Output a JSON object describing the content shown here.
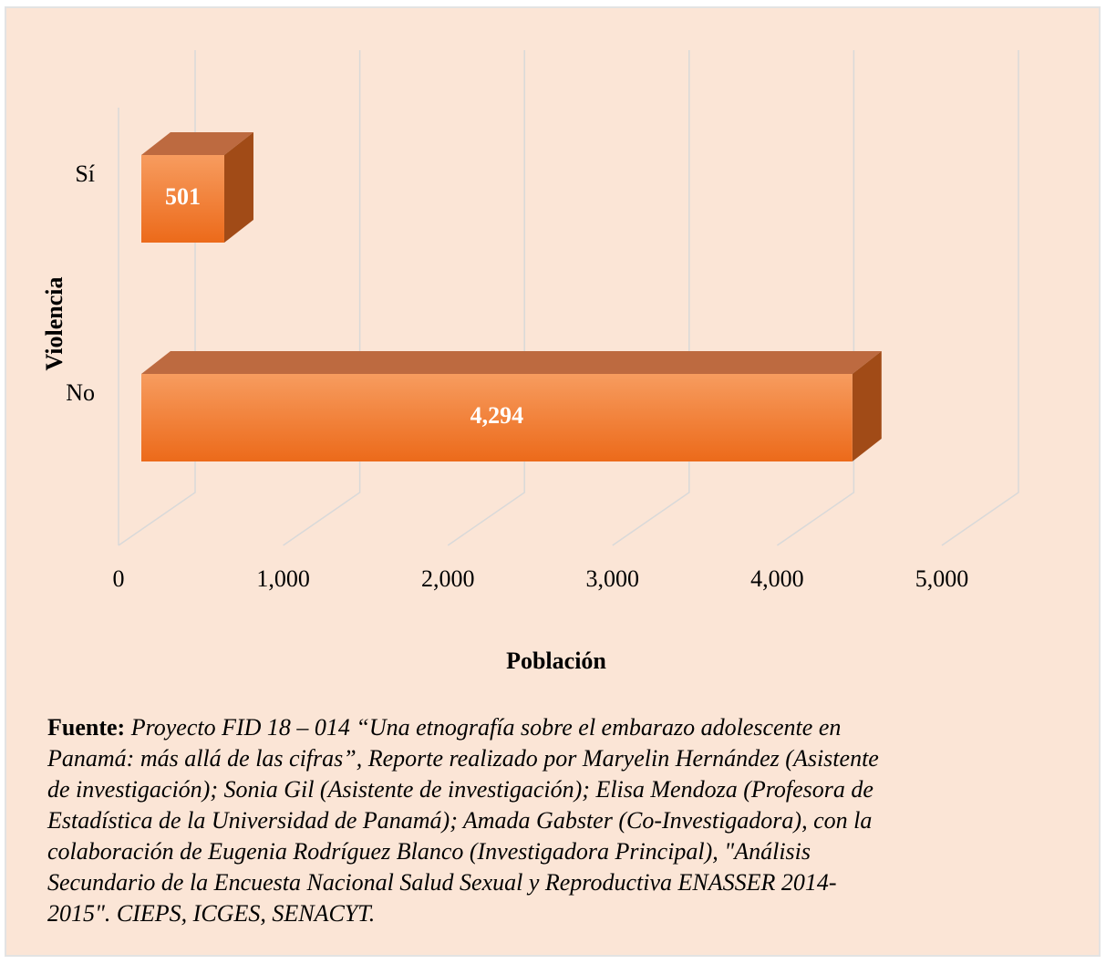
{
  "chart_data": {
    "type": "bar",
    "orientation": "horizontal",
    "categories": [
      "Sí",
      "No"
    ],
    "values": [
      501,
      4294
    ],
    "value_labels": [
      "501",
      "4,294"
    ],
    "color": "#ef7425",
    "xlim": [
      0,
      5000
    ],
    "xticks": [
      0,
      {
        "value": 1000,
        "label": "1,000"
      },
      {
        "value": 2000,
        "label": "2,000"
      },
      {
        "value": 3000,
        "label": "3,000"
      },
      {
        "value": 4000,
        "label": "4,000"
      },
      {
        "value": 5000,
        "label": "5,000"
      }
    ],
    "grid": true,
    "xlabel": "Población",
    "ylabel": "Violencia",
    "source_label": "Fuente:",
    "source_lines": [
      "Proyecto FID 18 – 014 “Una etnografía sobre el embarazo adolescente en",
      "Panamá: más allá de las cifras”, Reporte realizado por Maryelin Hernández (Asistente",
      "de investigación); Sonia Gil (Asistente de investigación); Elisa Mendoza (Profesora de",
      "Estadística de la Universidad de Panamá); Amada Gabster (Co-Investigadora), con la",
      "colaboración de Eugenia Rodríguez Blanco (Investigadora Principal), \"Análisis",
      "Secundario de la Encuesta Nacional Salud Sexual y Reproductiva ENASSER 2014-",
      "2015\". CIEPS, ICGES, SENACYT."
    ]
  }
}
